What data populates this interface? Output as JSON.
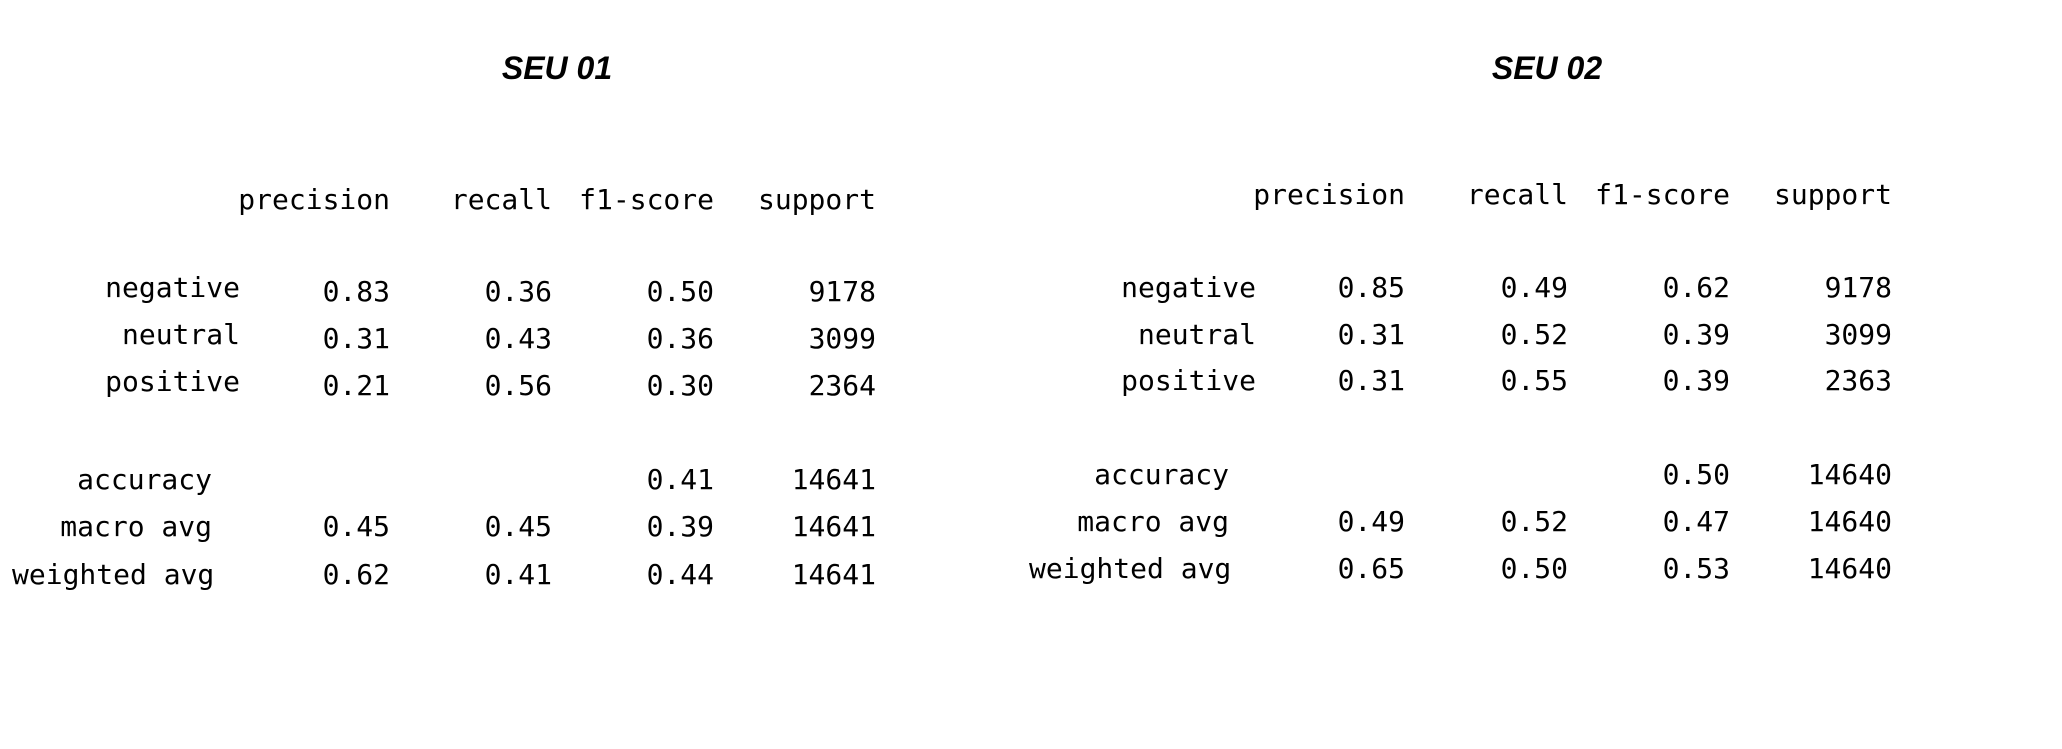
{
  "reports": [
    {
      "title": "SEU 01",
      "headers": [
        "precision",
        "recall",
        "f1-score",
        "support"
      ],
      "rows": [
        {
          "label": "negative",
          "precision": "0.83",
          "recall": "0.36",
          "f1": "0.50",
          "support": "9178"
        },
        {
          "label": "neutral",
          "precision": "0.31",
          "recall": "0.43",
          "f1": "0.36",
          "support": "3099"
        },
        {
          "label": "positive",
          "precision": "0.21",
          "recall": "0.56",
          "f1": "0.30",
          "support": "2364"
        }
      ],
      "summary": [
        {
          "label": "accuracy",
          "precision": "",
          "recall": "",
          "f1": "0.41",
          "support": "14641"
        },
        {
          "label": "macro avg",
          "precision": "0.45",
          "recall": "0.45",
          "f1": "0.39",
          "support": "14641"
        },
        {
          "label": "weighted avg",
          "precision": "0.62",
          "recall": "0.41",
          "f1": "0.44",
          "support": "14641"
        }
      ]
    },
    {
      "title": "SEU 02",
      "headers": [
        "precision",
        "recall",
        "f1-score",
        "support"
      ],
      "rows": [
        {
          "label": "negative",
          "precision": "0.85",
          "recall": "0.49",
          "f1": "0.62",
          "support": "9178"
        },
        {
          "label": "neutral",
          "precision": "0.31",
          "recall": "0.52",
          "f1": "0.39",
          "support": "3099"
        },
        {
          "label": "positive",
          "precision": "0.31",
          "recall": "0.55",
          "f1": "0.39",
          "support": "2363"
        }
      ],
      "summary": [
        {
          "label": "accuracy",
          "precision": "",
          "recall": "",
          "f1": "0.50",
          "support": "14640"
        },
        {
          "label": "macro avg",
          "precision": "0.49",
          "recall": "0.52",
          "f1": "0.47",
          "support": "14640"
        },
        {
          "label": "weighted avg",
          "precision": "0.65",
          "recall": "0.50",
          "f1": "0.53",
          "support": "14640"
        }
      ]
    }
  ]
}
